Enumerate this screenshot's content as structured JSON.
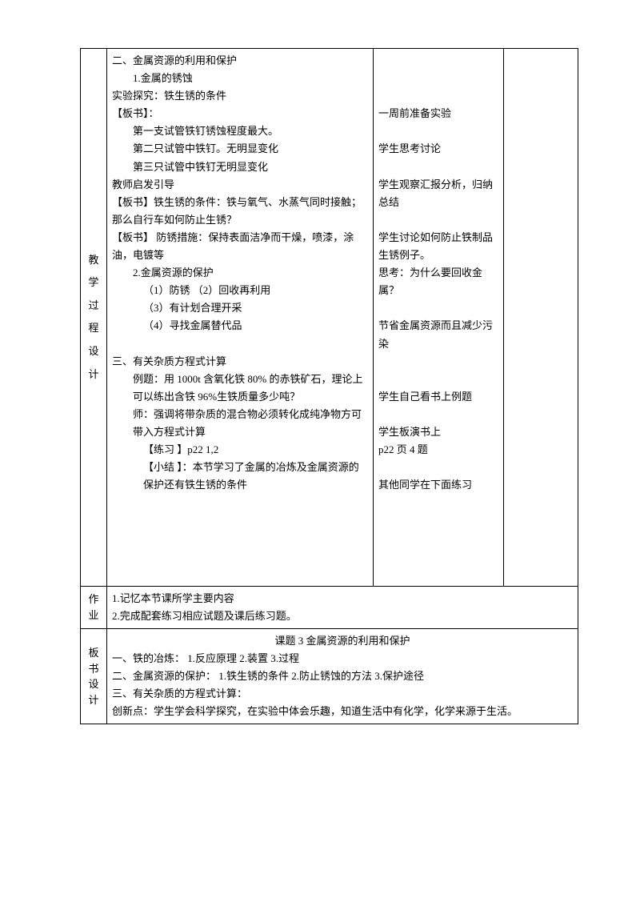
{
  "lessonDesign": {
    "labelChars": [
      "教",
      "学",
      "过",
      "程",
      "设",
      "计"
    ],
    "mainContent": {
      "section2Title": "二、金属资源的利用和保护",
      "sub1": "1.金属的锈蚀",
      "expLine": "实验探究：铁生锈的条件",
      "boardLabel1": "【板书】：",
      "tube1": "第一支试管铁钉锈蚀程度最大。",
      "tube2": "第二只试管中铁钉。无明显变化",
      "tube3": "第三只试管中铁钉无明显变化",
      "teacherGuide": "教师启发引导",
      "boardCond": "【板书】铁生锈的条件：铁与氧气、水蒸气同时接触；那么自行车如何防止生锈？",
      "boardMeasure": "【板书】 防锈措施：保持表面洁净而干燥，喷漆，涂油，电镀等",
      "sub2": "2.金属资源的保护",
      "m1": "（1）防锈    （2）回收再利用",
      "m3": "（3）有计划合理开采",
      "m4": "（4）寻找金属替代品",
      "section3Title": "三、有关杂质方程式计算",
      "example": "例题：用 1000t 含氧化铁 80% 的赤铁矿石，理论上可以练出含铁 96%生铁质量多少吨？",
      "teacherNote": "师：强调将带杂质的混合物必须转化成纯净物方可带入方程式计算",
      "practice": "【练习 】p22  1,2",
      "summary": "【小结 】：本节学习了金属的冶炼及金属资源的保护还有铁生锈的条件"
    },
    "rightContent": {
      "r1": "一周前准备实验",
      "r2": "学生思考讨论",
      "r3": "学生观察汇报分析，归纳总结",
      "r4": "学生讨论如何防止铁制品生锈例子。",
      "r5": "思考：为什么要回收金属？",
      "r6": "节省金属资源而且减少污染",
      "r7": "学生自己看书上例题",
      "r8": "学生板演书上",
      "r9": "p22 页 4 题",
      "r10": "其他同学在下面练习"
    }
  },
  "homework": {
    "labelChars": [
      "作",
      "业"
    ],
    "line1": "1.记忆本节课所学主要内容",
    "line2": "2.完成配套练习相应试题及课后练习题。"
  },
  "boardDesign": {
    "labelChars": [
      "板",
      "书",
      "设",
      "计"
    ],
    "title": "课题 3  金属资源的利用和保护",
    "line1": "一、铁的冶炼：   1.反应原理     2.装置     3.过程",
    "line2": "二、金属资源的保护：  1.铁生锈的条件  2.防止锈蚀的方法  3.保护途径",
    "line3": "三、有关杂质的方程式计算：",
    "line4": "创新点：学生学会科学探究，在实验中体会乐趣，知道生活中有化学，化学来源于生活。"
  }
}
